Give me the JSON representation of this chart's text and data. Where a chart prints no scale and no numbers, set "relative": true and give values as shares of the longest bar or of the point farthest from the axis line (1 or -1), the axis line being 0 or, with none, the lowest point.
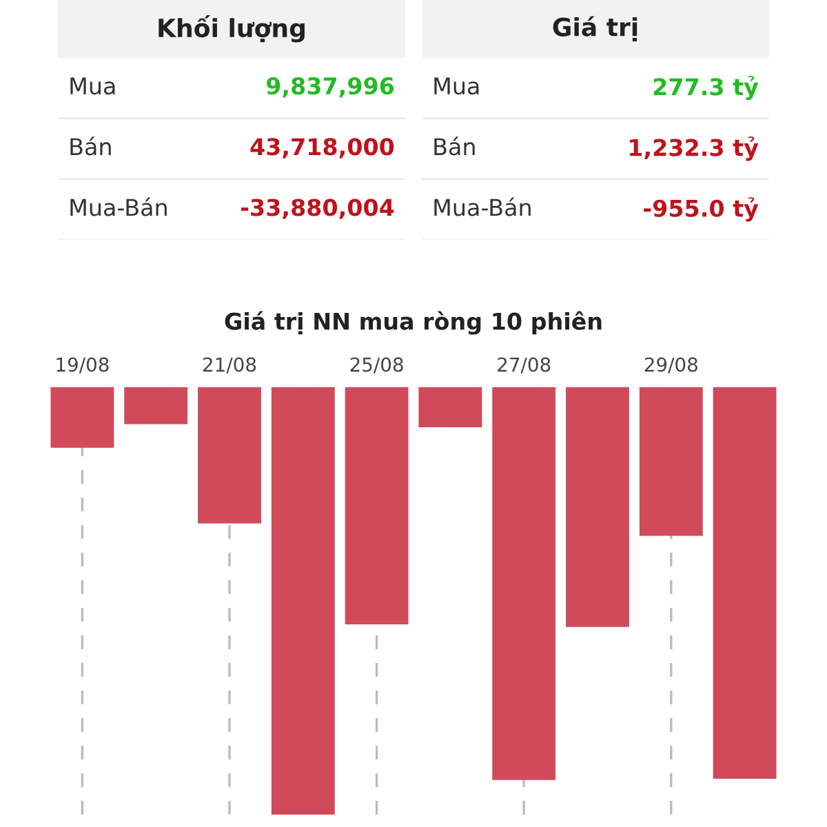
{
  "chart_data": [
    {
      "type": "other",
      "title": "Khối lượng",
      "categories": [
        "Mua",
        "Bán",
        "Mua-Bán"
      ],
      "values": [
        9837996,
        43718000,
        -33880004
      ],
      "value_labels": [
        "9,837,996",
        "43,718,000",
        "-33,880,004"
      ],
      "colors": [
        "#22bb22",
        "#c0121c",
        "#c0121c"
      ]
    },
    {
      "type": "other",
      "title": "Giá trị",
      "categories": [
        "Mua",
        "Bán",
        "Mua-Bán"
      ],
      "values": [
        277.3,
        1232.3,
        -955.0
      ],
      "value_labels": [
        "277.3 tỷ",
        "1,232.3 tỷ",
        "-955.0 tỷ"
      ],
      "colors": [
        "#22bb22",
        "#c0121c",
        "#c0121c"
      ]
    },
    {
      "type": "bar",
      "title": "Giá trị NN mua ròng 10 phiên",
      "relative": true,
      "categories": [
        "19/08",
        null,
        "21/08",
        null,
        "25/08",
        null,
        "27/08",
        null,
        "29/08",
        null
      ],
      "values": [
        -0.142,
        -0.087,
        -0.319,
        -1,
        -0.555,
        -0.094,
        -0.919,
        -0.561,
        -0.348,
        -0.916
      ],
      "color": "#d04a5a",
      "grid": "x",
      "legend": false
    }
  ]
}
